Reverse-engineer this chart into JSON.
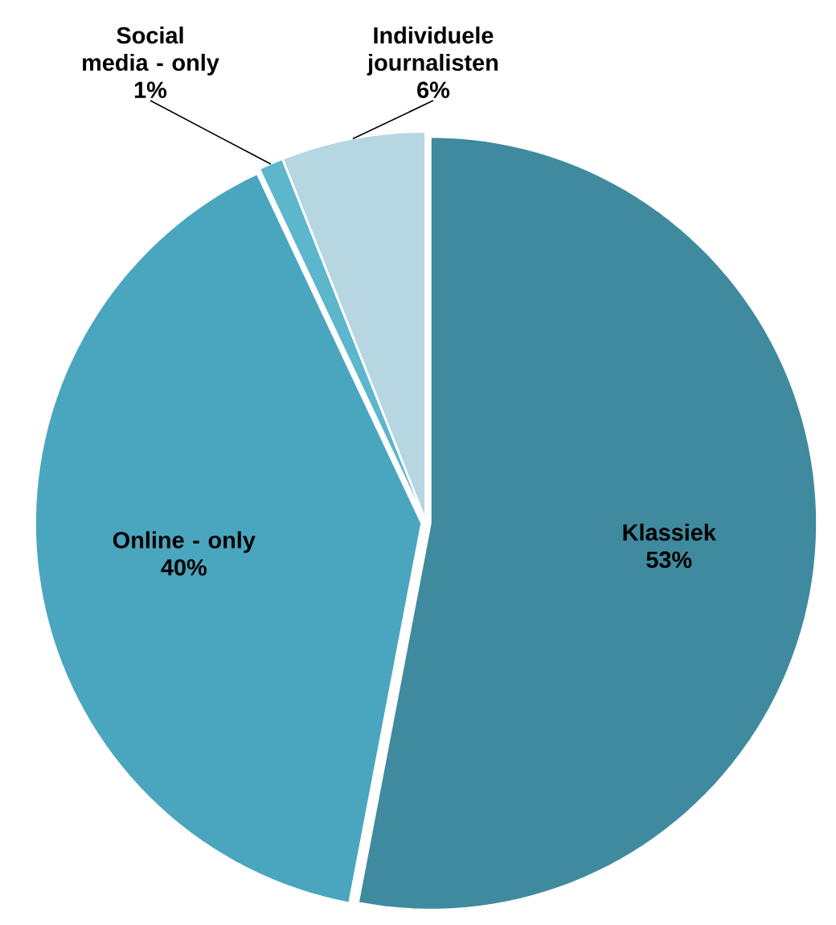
{
  "chart_data": {
    "type": "pie",
    "categories": [
      "Klassiek",
      "Online - only",
      "Social media - only",
      "Individuele journalisten"
    ],
    "values": [
      53,
      40,
      1,
      6
    ],
    "value_labels": [
      "53%",
      "40%",
      "1%",
      "6%"
    ],
    "colors": [
      "#3f8a9e",
      "#4aa6be",
      "#5cb6cc",
      "#b6d6e2"
    ]
  }
}
